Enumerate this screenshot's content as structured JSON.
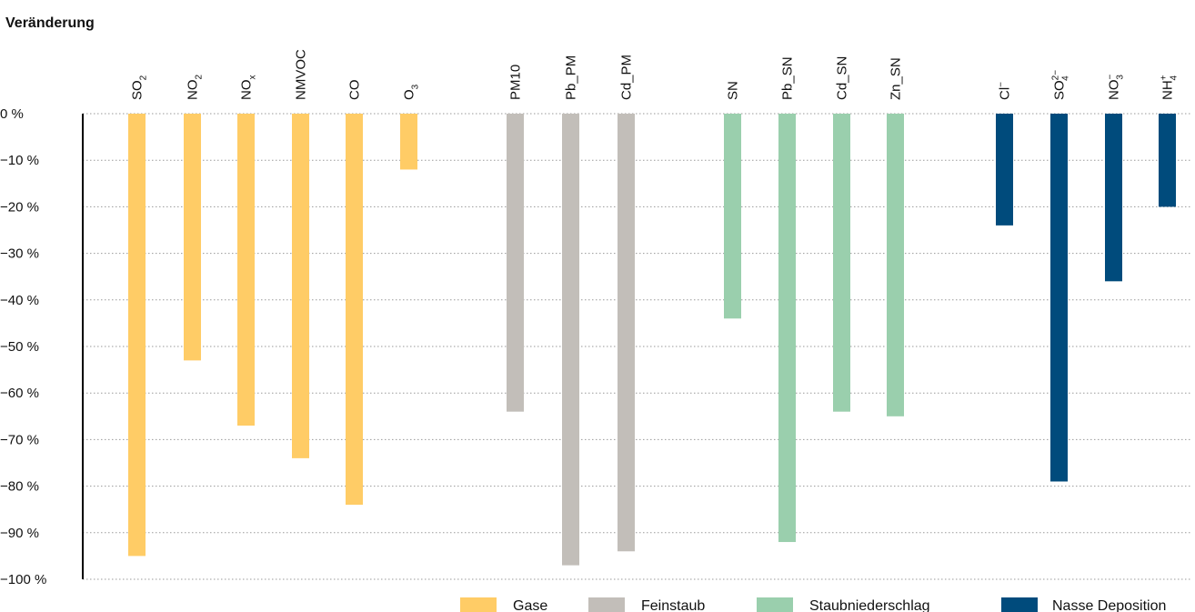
{
  "chart_data": {
    "type": "bar",
    "ylabel": "Veränderung",
    "ylim": [
      -100,
      0
    ],
    "yticks": [
      0,
      -10,
      -20,
      -30,
      -40,
      -50,
      -60,
      -70,
      -80,
      -90,
      -100
    ],
    "ytick_suffix": " %",
    "grid": true,
    "legend_position": "bottom-right",
    "series": [
      {
        "name": "Gase",
        "color": "#ffcc66",
        "items": [
          {
            "base": "SO",
            "sub": "2",
            "sup": "",
            "value": -95
          },
          {
            "base": "NO",
            "sub": "2",
            "sup": "",
            "value": -53
          },
          {
            "base": "NO",
            "sub": "x",
            "sup": "",
            "value": -67
          },
          {
            "base": "NMVOC",
            "sub": "",
            "sup": "",
            "value": -74
          },
          {
            "base": "CO",
            "sub": "",
            "sup": "",
            "value": -84
          },
          {
            "base": "O",
            "sub": "3",
            "sup": "",
            "value": -12
          }
        ]
      },
      {
        "name": "Feinstaub",
        "color": "#c2beb9",
        "items": [
          {
            "base": "PM10",
            "sub": "",
            "sup": "",
            "value": -64
          },
          {
            "base": "Pb_PM",
            "sub": "",
            "sup": "",
            "value": -97
          },
          {
            "base": "Cd_PM",
            "sub": "",
            "sup": "",
            "value": -94
          }
        ]
      },
      {
        "name": "Staubniederschlag",
        "color": "#9acfad",
        "items": [
          {
            "base": "SN",
            "sub": "",
            "sup": "",
            "value": -44
          },
          {
            "base": "Pb_SN",
            "sub": "",
            "sup": "",
            "value": -92
          },
          {
            "base": "Cd_SN",
            "sub": "",
            "sup": "",
            "value": -64
          },
          {
            "base": "Zn_SN",
            "sub": "",
            "sup": "",
            "value": -65
          }
        ]
      },
      {
        "name": "Nasse Deposition",
        "color": "#004b7c",
        "items": [
          {
            "base": "Cl",
            "sub": "",
            "sup": "−",
            "value": -24
          },
          {
            "base": "SO",
            "sub": "4",
            "sup": "2−",
            "value": -79
          },
          {
            "base": "NO",
            "sub": "3",
            "sup": "−",
            "value": -36
          },
          {
            "base": "NH",
            "sub": "4",
            "sup": "+",
            "value": -20
          }
        ]
      }
    ]
  }
}
